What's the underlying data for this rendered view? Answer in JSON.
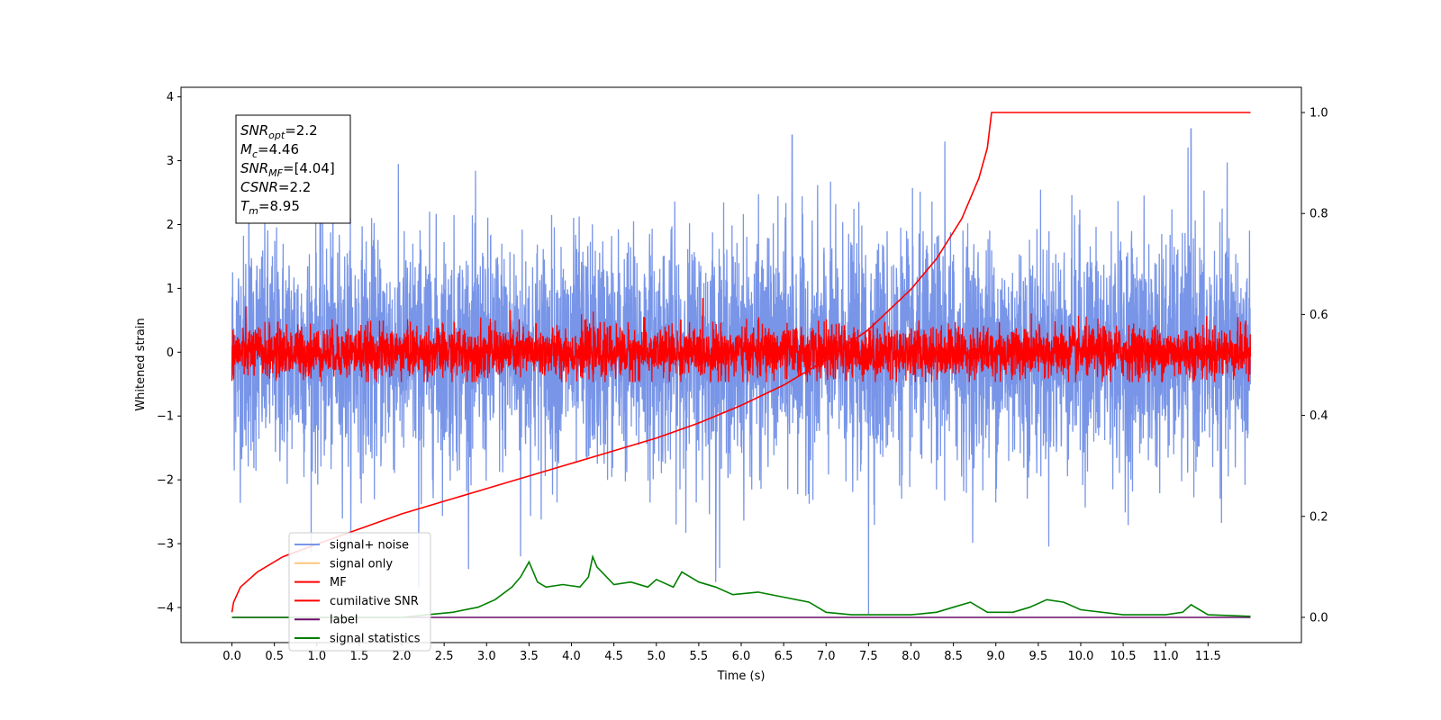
{
  "chart_data": {
    "type": "line",
    "xlabel": "Time (s)",
    "ylabel": "Whitened strain",
    "xlim": [
      -0.6,
      12.6
    ],
    "ylim": [
      -4.55,
      4.15
    ],
    "y2lim": [
      -0.05,
      1.05
    ],
    "x_ticks": [
      "0.0",
      "0.5",
      "1.0",
      "1.5",
      "2.0",
      "2.5",
      "3.0",
      "3.5",
      "4.0",
      "4.5",
      "5.0",
      "5.5",
      "6.0",
      "6.5",
      "7.0",
      "7.5",
      "8.0",
      "8.5",
      "9.0",
      "9.5",
      "10.0",
      "10.5",
      "11.0",
      "11.5"
    ],
    "y_ticks": [
      "4",
      "3",
      "2",
      "1",
      "0",
      "−1",
      "−2",
      "−3",
      "−4"
    ],
    "y2_ticks": [
      "1.0",
      "0.8",
      "0.6",
      "0.4",
      "0.2",
      "0.0"
    ],
    "annotation": [
      {
        "main": "SNR",
        "sub": "opt",
        "rest": "=2.2"
      },
      {
        "main": "M",
        "sub": "c",
        "rest": "=4.46"
      },
      {
        "main": "SNR",
        "sub": "MF",
        "rest": "=[4.04]"
      },
      {
        "main": "CSNR",
        "sub": "",
        "rest": "=2.2"
      },
      {
        "main": "T",
        "sub": "m",
        "rest": "=8.95"
      }
    ],
    "legend": {
      "placement": "lower-left",
      "entries": [
        {
          "label": "signal+ noise",
          "color": "#7895e8"
        },
        {
          "label": "signal only",
          "color": "#ffc57a"
        },
        {
          "label": "MF",
          "color": "#ff0000"
        },
        {
          "label": "cumilative SNR",
          "color": "#ff0000"
        },
        {
          "label": "label",
          "color": "#6a0f6a"
        },
        {
          "label": "signal statistics",
          "color": "#008000"
        }
      ]
    },
    "series": [
      {
        "name": "signal+ noise",
        "axis": "left",
        "color": "#7895e8",
        "x_range": [
          0,
          12
        ],
        "amplitude_std": 0.9,
        "spikes": [
          [
            0.2,
            3.7
          ],
          [
            7.5,
            -4.1
          ],
          [
            5.7,
            -3.6
          ],
          [
            3.4,
            -3.2
          ],
          [
            11.3,
            3.5
          ],
          [
            2.2,
            -3.7
          ],
          [
            8.4,
            3.3
          ],
          [
            6.6,
            3.4
          ]
        ]
      },
      {
        "name": "MF",
        "axis": "left",
        "color": "#ff0000",
        "x_range": [
          0,
          12
        ],
        "amplitude_std": 0.2,
        "max_abs": 0.85
      },
      {
        "name": "cumilative SNR",
        "axis": "right",
        "color": "#ff0000",
        "x": [
          0.0,
          0.02,
          0.1,
          0.3,
          0.6,
          1.0,
          1.5,
          2.0,
          2.5,
          3.0,
          3.5,
          4.0,
          4.5,
          5.0,
          5.5,
          6.0,
          6.5,
          7.0,
          7.5,
          8.0,
          8.3,
          8.6,
          8.8,
          8.9,
          8.95,
          12.0
        ],
        "y": [
          0.01,
          0.03,
          0.06,
          0.09,
          0.12,
          0.145,
          0.175,
          0.205,
          0.23,
          0.255,
          0.28,
          0.305,
          0.33,
          0.355,
          0.385,
          0.42,
          0.46,
          0.51,
          0.57,
          0.65,
          0.71,
          0.79,
          0.87,
          0.93,
          1.0,
          1.0
        ]
      },
      {
        "name": "label",
        "axis": "right",
        "color": "#6a0f6a",
        "x": [
          0,
          12
        ],
        "y": [
          0,
          0
        ]
      },
      {
        "name": "signal statistics",
        "axis": "right",
        "color": "#008000",
        "x": [
          0.0,
          0.5,
          1.0,
          1.5,
          2.0,
          2.3,
          2.6,
          2.9,
          3.1,
          3.3,
          3.4,
          3.5,
          3.6,
          3.7,
          3.9,
          4.1,
          4.2,
          4.25,
          4.3,
          4.5,
          4.7,
          4.9,
          5.0,
          5.2,
          5.3,
          5.5,
          5.7,
          5.9,
          6.2,
          6.5,
          6.8,
          7.0,
          7.3,
          7.6,
          8.0,
          8.3,
          8.5,
          8.7,
          8.9,
          9.2,
          9.4,
          9.6,
          9.8,
          10.0,
          10.5,
          11.0,
          11.2,
          11.3,
          11.5,
          12.0
        ],
        "y": [
          0.0,
          0.0,
          0.0,
          0.0,
          0.0,
          0.005,
          0.01,
          0.02,
          0.035,
          0.06,
          0.08,
          0.11,
          0.07,
          0.06,
          0.065,
          0.06,
          0.08,
          0.12,
          0.1,
          0.065,
          0.07,
          0.06,
          0.075,
          0.06,
          0.09,
          0.07,
          0.06,
          0.045,
          0.05,
          0.04,
          0.03,
          0.01,
          0.005,
          0.005,
          0.005,
          0.01,
          0.02,
          0.03,
          0.01,
          0.01,
          0.02,
          0.035,
          0.03,
          0.015,
          0.005,
          0.005,
          0.01,
          0.025,
          0.005,
          0.002
        ]
      }
    ]
  }
}
